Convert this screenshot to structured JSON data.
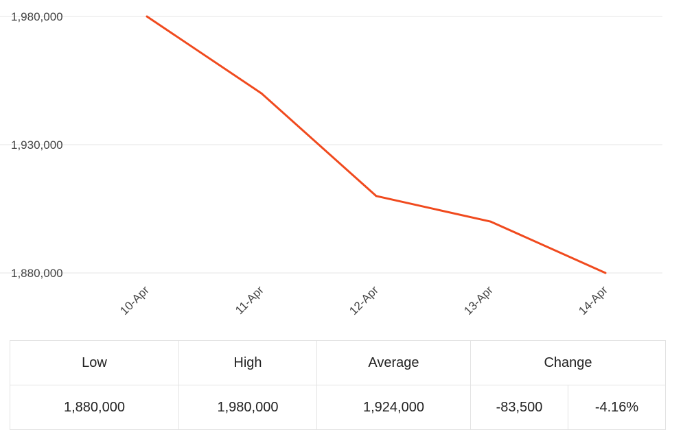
{
  "chart_data": {
    "type": "line",
    "x": [
      "10-Apr",
      "11-Apr",
      "12-Apr",
      "13-Apr",
      "14-Apr"
    ],
    "series": [
      {
        "values": [
          1980000,
          1950000,
          1910000,
          1900000,
          1880000
        ]
      }
    ],
    "ylim": [
      1880000,
      1980000
    ],
    "yticks": [
      1980000,
      1930000,
      1880000
    ],
    "ytick_labels": [
      "1,980,000",
      "1,930,000",
      "1,880,000"
    ],
    "grid": true,
    "line_color": "#f04a1e"
  },
  "stats": {
    "headers": {
      "low": "Low",
      "high": "High",
      "average": "Average",
      "change": "Change"
    },
    "values": {
      "low": "1,880,000",
      "high": "1,980,000",
      "average": "1,924,000",
      "change_abs": "-83,500",
      "change_pct": "-4.16%"
    }
  }
}
